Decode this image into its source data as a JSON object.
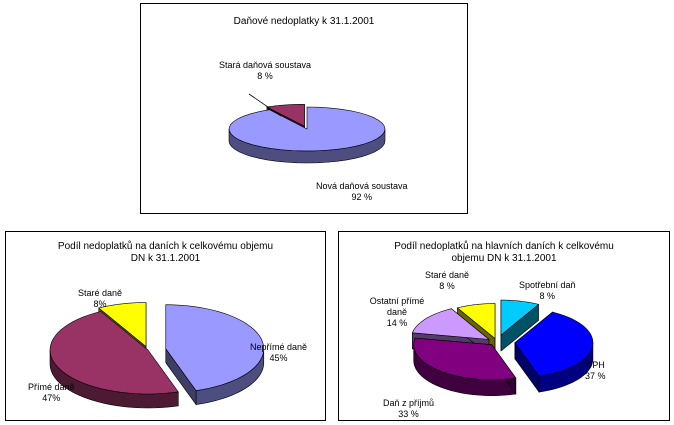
{
  "chart_data": [
    {
      "type": "pie",
      "title": "Daňové nedoplatky k 31.1.2001",
      "slices": [
        {
          "label": "Nová daňová soustava",
          "value": 92,
          "percent_label": "92 %",
          "color": "#9999ff"
        },
        {
          "label": "Stará daňová soustava",
          "value": 8,
          "percent_label": "8 %",
          "color": "#993366"
        }
      ]
    },
    {
      "type": "pie",
      "title": "Podíl nedoplatků na daních k celkovému objemu DN k 31.1.2001",
      "title_lines": [
        "Podíl nedoplatků na daních k celkovému objemu",
        "DN k 31.1.2001"
      ],
      "slices": [
        {
          "label": "Nepřímé daně",
          "value": 45,
          "percent_label": "45%",
          "color": "#9999ff"
        },
        {
          "label": "Přímé daně",
          "value": 47,
          "percent_label": "47%",
          "color": "#993366"
        },
        {
          "label": "Staré daně",
          "value": 8,
          "percent_label": "8%",
          "color": "#ffff00"
        }
      ]
    },
    {
      "type": "pie",
      "title": "Podíl nedoplatků na hlavních daních k celkovému objemu DN k 31.1.2001",
      "title_lines": [
        "Podíl nedoplatků na hlavních daních k celkovému",
        "objemu DN k 31.1.2001"
      ],
      "slices": [
        {
          "label": "Spotřební daň",
          "value": 8,
          "percent_label": "8 %",
          "color": "#00ccff"
        },
        {
          "label": "DPH",
          "value": 37,
          "percent_label": "37 %",
          "color": "#0000ff"
        },
        {
          "label": "Daň z příjmů",
          "value": 33,
          "percent_label": "33 %",
          "color": "#800080"
        },
        {
          "label": "Ostatní přímé daně",
          "value": 14,
          "percent_label": "14 %",
          "color": "#cc99ff"
        },
        {
          "label": "Staré daně",
          "value": 8,
          "percent_label": "8 %",
          "color": "#ffff00"
        }
      ]
    }
  ]
}
